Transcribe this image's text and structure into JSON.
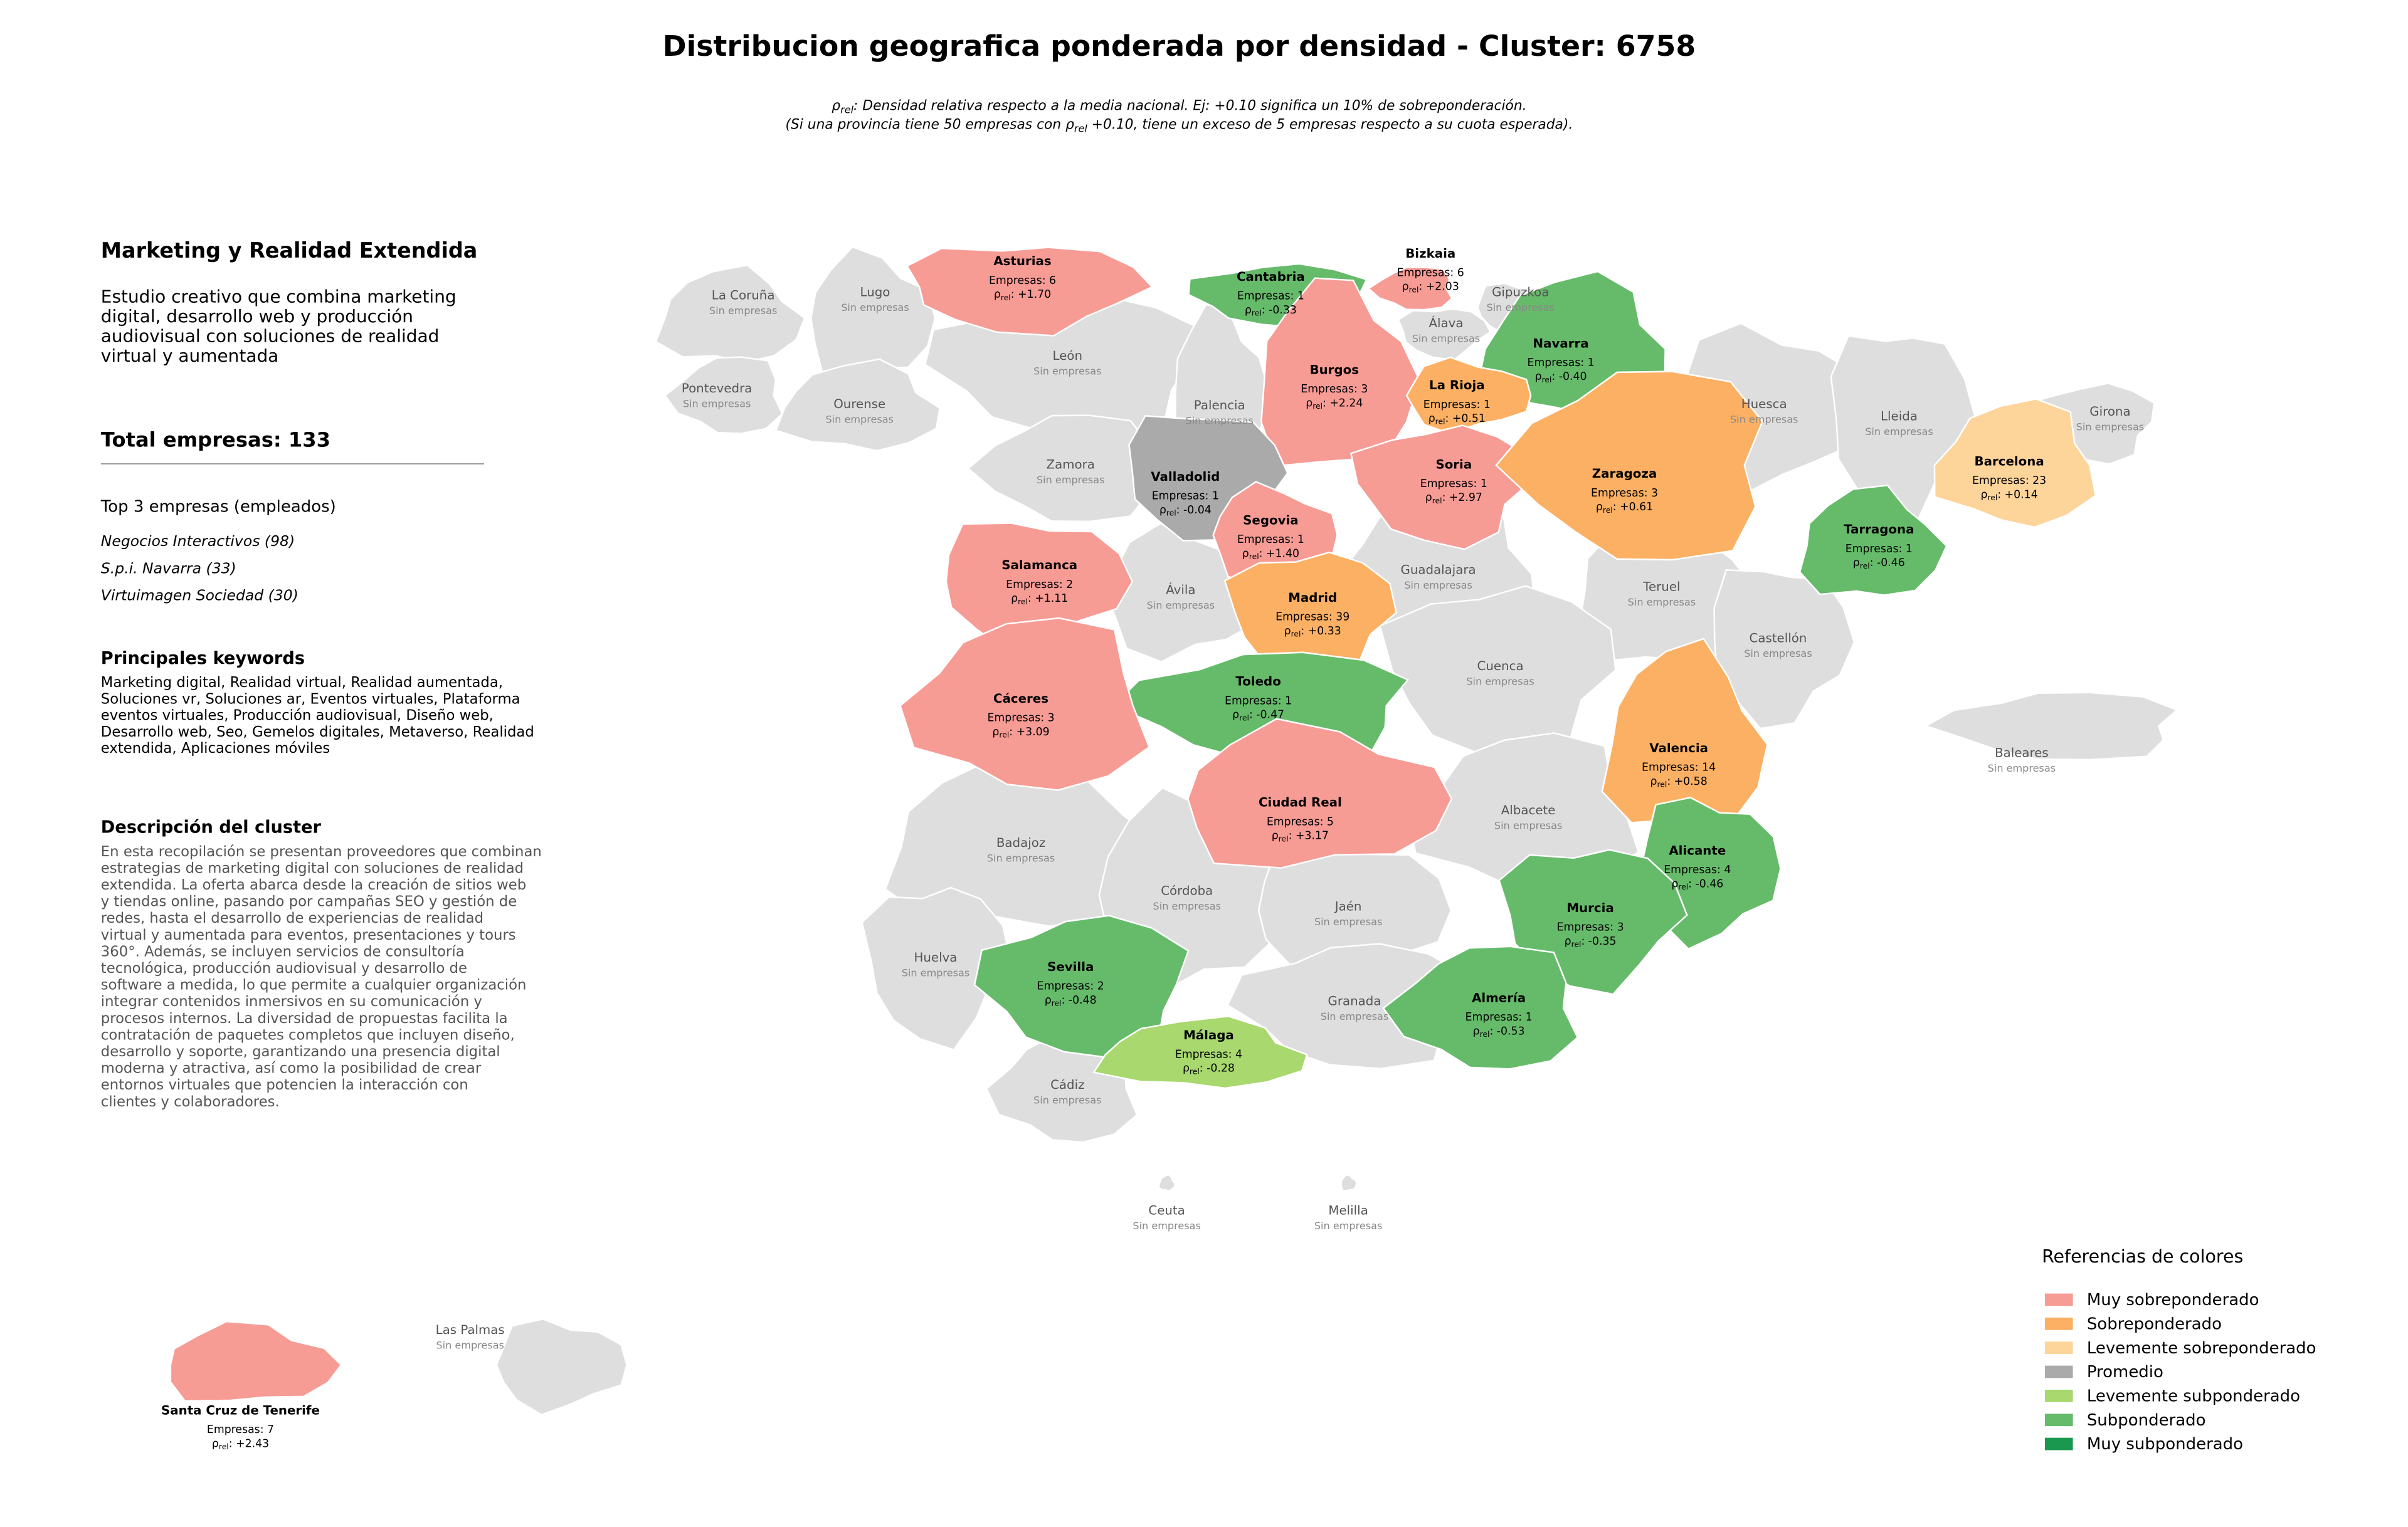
{
  "map": {
    "title": "Distribucion geografica ponderada por densidad - Cluster: 6758",
    "subtitle": {
      "symbol": "ρ",
      "subscript": "rel",
      "line1_rest": ": Densidad relativa respecto a la media nacional. Ej: +0.10 significa un 10% de sobreponderación.",
      "line2_start": "(Si una provincia tiene 50 empresas con",
      "line2_end": "+0.10, tiene un exceso de 5 empresas respecto a su cuota esperada)."
    },
    "count_label": "Empresas:",
    "density_separator": ":",
    "no_data_label": "Sin empresas",
    "provinces": [
      {
        "name": "La Coruña",
        "color": "#dedede"
      },
      {
        "name": "Lugo",
        "color": "#dedede"
      },
      {
        "name": "Gipuzkoa",
        "color": "#dedede"
      },
      {
        "name": "Álava",
        "color": "#dedede"
      },
      {
        "name": "León",
        "color": "#dedede"
      },
      {
        "name": "Pontevedra",
        "color": "#dedede"
      },
      {
        "name": "Ourense",
        "color": "#dedede"
      },
      {
        "name": "Palencia",
        "color": "#dedede"
      },
      {
        "name": "Huesca",
        "color": "#dedede"
      },
      {
        "name": "Lleida",
        "color": "#dedede"
      },
      {
        "name": "Girona",
        "color": "#dedede"
      },
      {
        "name": "Zamora",
        "color": "#dedede"
      },
      {
        "name": "Guadalajara",
        "color": "#dedede"
      },
      {
        "name": "Teruel",
        "color": "#dedede"
      },
      {
        "name": "Ávila",
        "color": "#dedede"
      },
      {
        "name": "Castellón",
        "color": "#dedede"
      },
      {
        "name": "Cuenca",
        "color": "#dedede"
      },
      {
        "name": "Baleares",
        "color": "#dedede"
      },
      {
        "name": "Albacete",
        "color": "#dedede"
      },
      {
        "name": "Badajoz",
        "color": "#dedede"
      },
      {
        "name": "Córdoba",
        "color": "#dedede"
      },
      {
        "name": "Jaén",
        "color": "#dedede"
      },
      {
        "name": "Huelva",
        "color": "#dedede"
      },
      {
        "name": "Granada",
        "color": "#dedede"
      },
      {
        "name": "Cádiz",
        "color": "#dedede"
      },
      {
        "name": "Ceuta",
        "color": "#dedede"
      },
      {
        "name": "Melilla",
        "color": "#dedede"
      },
      {
        "name": "Las Palmas",
        "color": "#dedede"
      },
      {
        "name": "Asturias",
        "count": 6,
        "density": "+1.70",
        "color": "#f79b95"
      },
      {
        "name": "Cantabria",
        "count": 1,
        "density": "-0.33",
        "color": "#66bb6a"
      },
      {
        "name": "Bizkaia",
        "count": 6,
        "density": "+2.03",
        "color": "#f79b95"
      },
      {
        "name": "Navarra",
        "count": 1,
        "density": "-0.40",
        "color": "#66bb6a"
      },
      {
        "name": "Burgos",
        "count": 3,
        "density": "+2.24",
        "color": "#f79b95"
      },
      {
        "name": "La Rioja",
        "count": 1,
        "density": "+0.51",
        "color": "#fbb063"
      },
      {
        "name": "Valladolid",
        "count": 1,
        "density": "-0.04",
        "color": "#aaaaaa"
      },
      {
        "name": "Soria",
        "count": 1,
        "density": "+2.97",
        "color": "#f79b95"
      },
      {
        "name": "Zaragoza",
        "count": 3,
        "density": "+0.61",
        "color": "#fbb063"
      },
      {
        "name": "Barcelona",
        "count": 23,
        "density": "+0.14",
        "color": "#fdd49a"
      },
      {
        "name": "Tarragona",
        "count": 1,
        "density": "-0.46",
        "color": "#66bb6a"
      },
      {
        "name": "Segovia",
        "count": 1,
        "density": "+1.40",
        "color": "#f79b95"
      },
      {
        "name": "Salamanca",
        "count": 2,
        "density": "+1.11",
        "color": "#f79b95"
      },
      {
        "name": "Madrid",
        "count": 39,
        "density": "+0.33",
        "color": "#fbb063"
      },
      {
        "name": "Toledo",
        "count": 1,
        "density": "-0.47",
        "color": "#66bb6a"
      },
      {
        "name": "Cáceres",
        "count": 3,
        "density": "+3.09",
        "color": "#f79b95"
      },
      {
        "name": "Valencia",
        "count": 14,
        "density": "+0.58",
        "color": "#fbb063"
      },
      {
        "name": "Ciudad Real",
        "count": 5,
        "density": "+3.17",
        "color": "#f79b95"
      },
      {
        "name": "Alicante",
        "count": 4,
        "density": "-0.46",
        "color": "#66bb6a"
      },
      {
        "name": "Murcia",
        "count": 3,
        "density": "-0.35",
        "color": "#66bb6a"
      },
      {
        "name": "Sevilla",
        "count": 2,
        "density": "-0.48",
        "color": "#66bb6a"
      },
      {
        "name": "Almería",
        "count": 1,
        "density": "-0.53",
        "color": "#66bb6a"
      },
      {
        "name": "Málaga",
        "count": 4,
        "density": "-0.28",
        "color": "#a8d86e"
      },
      {
        "name": "Santa Cruz de Tenerife",
        "count": 7,
        "density": "+2.43",
        "color": "#f79b95"
      }
    ],
    "legend": {
      "title": "Referencias de colores",
      "items": [
        {
          "label": "Muy sobreponderado",
          "color": "#f79b95"
        },
        {
          "label": "Sobreponderado",
          "color": "#fbb063"
        },
        {
          "label": "Levemente sobreponderado",
          "color": "#fdd49a"
        },
        {
          "label": "Promedio",
          "color": "#aaaaaa"
        },
        {
          "label": "Levemente subponderado",
          "color": "#a8d86e"
        },
        {
          "label": "Subponderado",
          "color": "#66bb6a"
        },
        {
          "label": "Muy subponderado",
          "color": "#1a9850"
        }
      ]
    }
  },
  "sidebar": {
    "title": "Marketing y Realidad Extendida",
    "summary": [
      "Estudio creativo que combina marketing",
      "digital, desarrollo web y producción",
      "audiovisual con soluciones de realidad",
      "virtual y aumentada"
    ],
    "total_label": "Total empresas:",
    "total": 133,
    "top_title": "Top 3 empresas (empleados)",
    "top": [
      "Negocios Interactivos (98)",
      "S.p.i. Navarra (33)",
      "Virtuimagen Sociedad (30)"
    ],
    "keywords_title": "Principales keywords",
    "keywords": [
      "Marketing digital, Realidad virtual, Realidad aumentada,",
      "Soluciones vr, Soluciones ar, Eventos virtuales, Plataforma",
      "eventos virtuales, Producción audiovisual, Diseño web,",
      "Desarrollo web, Seo, Gemelos digitales, Metaverso, Realidad",
      "extendida, Aplicaciones móviles"
    ],
    "description_title": "Descripción del cluster",
    "description": [
      "En esta recopilación se presentan proveedores que combinan",
      "estrategias de marketing digital con soluciones de realidad",
      "extendida. La oferta abarca desde la creación de sitios web",
      "y tiendas online, pasando por campañas SEO y gestión de",
      "redes, hasta el desarrollo de experiencias de realidad",
      "virtual y aumentada para eventos, presentaciones y tours",
      "360°. Además, se incluyen servicios de consultoría",
      "tecnológica, producción audiovisual y desarrollo de",
      "software a medida, lo que permite a cualquier organización",
      "integrar contenidos inmersivos en su comunicación y",
      "procesos internos. La diversidad de propuestas facilita la",
      "contratación de paquetes completos que incluyen diseño,",
      "desarrollo y soporte, garantizando una presencia digital",
      "moderna y atractiva, así como la posibilidad de crear",
      "entornos virtuales que potencien la interacción con",
      "clientes y colaboradores."
    ]
  }
}
